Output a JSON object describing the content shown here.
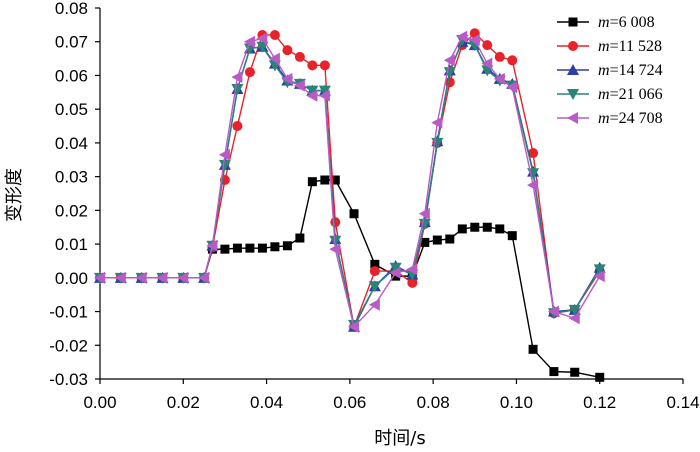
{
  "chart_data": {
    "type": "line",
    "title": "",
    "xlabel": "时间/s",
    "ylabel": "变形度",
    "xlim": [
      0.0,
      0.14
    ],
    "ylim": [
      -0.03,
      0.08
    ],
    "xticks": [
      0.0,
      0.02,
      0.04,
      0.06,
      0.08,
      0.1,
      0.12,
      0.14
    ],
    "yticks": [
      -0.03,
      -0.02,
      -0.01,
      0.0,
      0.01,
      0.02,
      0.03,
      0.04,
      0.05,
      0.06,
      0.07,
      0.08
    ],
    "xtick_labels": [
      "0.00",
      "0.02",
      "0.04",
      "0.06",
      "0.08",
      "0.10",
      "0.12",
      "0.14"
    ],
    "ytick_labels": [
      "-0.03",
      "-0.02",
      "-0.01",
      "0.00",
      "0.01",
      "0.02",
      "0.03",
      "0.04",
      "0.05",
      "0.06",
      "0.07",
      "0.08"
    ],
    "grid": false,
    "legend_position": "top-right",
    "x": [
      0.0,
      0.005,
      0.01,
      0.015,
      0.02,
      0.025,
      0.027,
      0.03,
      0.033,
      0.036,
      0.039,
      0.042,
      0.045,
      0.048,
      0.051,
      0.054,
      0.0565,
      0.061,
      0.066,
      0.071,
      0.075,
      0.078,
      0.081,
      0.084,
      0.087,
      0.09,
      0.093,
      0.096,
      0.099,
      0.104,
      0.109,
      0.114,
      0.12
    ],
    "series": [
      {
        "name_var": "m",
        "name_value": "=6 008",
        "color": "#000000",
        "marker": "square",
        "values": [
          0.0,
          0.0,
          0.0,
          0.0,
          0.0,
          0.0,
          0.0085,
          0.0085,
          0.0088,
          0.0088,
          0.0088,
          0.0092,
          0.0095,
          0.0118,
          0.0285,
          0.029,
          0.029,
          0.019,
          0.004,
          0.0005,
          0.0005,
          0.0105,
          0.0112,
          0.0115,
          0.0145,
          0.015,
          0.015,
          0.0145,
          0.0125,
          -0.0212,
          -0.0278,
          -0.028,
          -0.0295
        ]
      },
      {
        "name_var": "m",
        "name_value": "=11 528",
        "color": "#e8222a",
        "marker": "circle",
        "values": [
          0.0,
          0.0,
          0.0,
          0.0,
          0.0,
          0.0,
          0.009,
          0.029,
          0.045,
          0.061,
          0.072,
          0.072,
          0.0675,
          0.0655,
          0.063,
          0.063,
          0.0165,
          -0.0145,
          0.002,
          0.002,
          -0.0015,
          0.016,
          0.04,
          0.058,
          0.069,
          0.0725,
          0.069,
          0.0655,
          0.0645,
          0.037,
          -0.0105,
          -0.0095,
          0.002
        ]
      },
      {
        "name_var": "m",
        "name_value": "=14 724",
        "color": "#2b3fa6",
        "marker": "triangle-up",
        "values": [
          0.0,
          0.0,
          0.0,
          0.0,
          0.0,
          0.0,
          0.0095,
          0.0335,
          0.056,
          0.068,
          0.0685,
          0.0635,
          0.0585,
          0.0575,
          0.0555,
          0.0555,
          0.0115,
          -0.0145,
          -0.0025,
          0.0035,
          0.001,
          0.0165,
          0.0405,
          0.0615,
          0.07,
          0.069,
          0.062,
          0.059,
          0.0575,
          0.0315,
          -0.01,
          -0.0095,
          0.003
        ]
      },
      {
        "name_var": "m",
        "name_value": "=21 066",
        "color": "#2a8477",
        "marker": "triangle-down",
        "values": [
          0.0,
          0.0,
          0.0,
          0.0,
          0.0,
          0.0,
          0.0095,
          0.0335,
          0.056,
          0.068,
          0.0685,
          0.063,
          0.058,
          0.0575,
          0.0555,
          0.0555,
          0.011,
          -0.014,
          -0.0025,
          0.003,
          0.001,
          0.016,
          0.04,
          0.061,
          0.0705,
          0.069,
          0.0615,
          0.0585,
          0.057,
          0.031,
          -0.0105,
          -0.0095,
          0.0025
        ]
      },
      {
        "name_var": "m",
        "name_value": "=24 708",
        "color": "#b95bc7",
        "marker": "triangle-left",
        "values": [
          0.0,
          0.0,
          0.0,
          0.0,
          0.0,
          0.0,
          0.0095,
          0.0365,
          0.0595,
          0.07,
          0.071,
          0.065,
          0.059,
          0.057,
          0.054,
          0.054,
          0.0085,
          -0.0145,
          -0.008,
          0.0015,
          0.0025,
          0.019,
          0.046,
          0.0645,
          0.0715,
          0.0705,
          0.0635,
          0.059,
          0.0565,
          0.0275,
          -0.01,
          -0.012,
          0.0005
        ]
      }
    ]
  }
}
